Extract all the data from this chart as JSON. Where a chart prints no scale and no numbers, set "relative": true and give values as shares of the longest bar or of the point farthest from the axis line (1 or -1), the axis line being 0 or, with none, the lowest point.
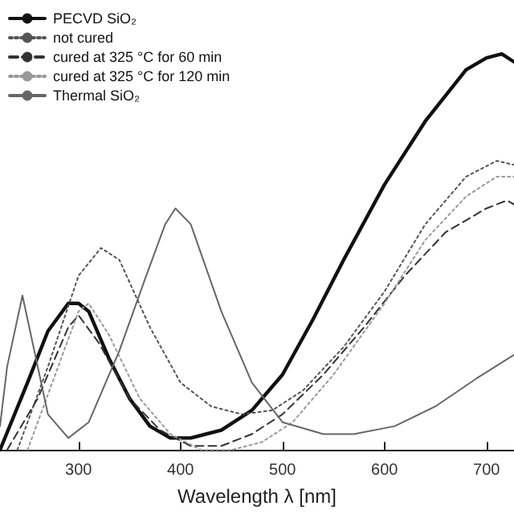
{
  "chart_data": {
    "type": "line",
    "relative": true,
    "xlabel": "Wavelength λ [nm]",
    "xlim": [
      223,
      727
    ],
    "xticks": [
      300,
      400,
      500,
      600,
      700
    ],
    "grid": false,
    "legend": "top left",
    "marker": "none",
    "series": [
      {
        "name": "PECVD SiO₂",
        "color": "#111111",
        "line_style": "solid",
        "x": [
          223,
          250,
          270,
          290,
          300,
          310,
          330,
          350,
          370,
          390,
          410,
          440,
          470,
          500,
          530,
          560,
          600,
          640,
          680,
          700,
          715,
          727
        ],
        "values": [
          0,
          0.17,
          0.3,
          0.37,
          0.37,
          0.35,
          0.23,
          0.13,
          0.06,
          0.03,
          0.03,
          0.05,
          0.1,
          0.19,
          0.33,
          0.48,
          0.67,
          0.83,
          0.96,
          0.99,
          1,
          0.98
        ]
      },
      {
        "name": "not cured",
        "color": "#555555",
        "line_style": "dotted",
        "x": [
          240,
          270,
          300,
          322,
          340,
          370,
          400,
          430,
          460,
          490,
          520,
          560,
          600,
          640,
          680,
          710,
          727
        ],
        "values": [
          0,
          0.21,
          0.44,
          0.51,
          0.48,
          0.31,
          0.17,
          0.11,
          0.09,
          0.1,
          0.15,
          0.26,
          0.4,
          0.57,
          0.69,
          0.73,
          0.72
        ]
      },
      {
        "name": "cured at 325 °C for 60 min",
        "color": "#333333",
        "line_style": "dashed",
        "x": [
          230,
          260,
          290,
          300,
          320,
          350,
          380,
          410,
          440,
          470,
          500,
          540,
          580,
          620,
          660,
          700,
          720,
          727
        ],
        "values": [
          0,
          0.13,
          0.31,
          0.34,
          0.27,
          0.13,
          0.05,
          0.01,
          0.01,
          0.04,
          0.09,
          0.19,
          0.31,
          0.44,
          0.55,
          0.61,
          0.63,
          0.62
        ]
      },
      {
        "name": "cured at 325 °C for 120 min",
        "color": "#999999",
        "line_style": "dotted",
        "x": [
          250,
          280,
          300,
          310,
          330,
          360,
          390,
          420,
          450,
          480,
          510,
          550,
          600,
          640,
          680,
          710,
          727
        ],
        "values": [
          0,
          0.21,
          0.35,
          0.37,
          0.29,
          0.13,
          0.04,
          0,
          0,
          0.02,
          0.07,
          0.19,
          0.37,
          0.53,
          0.64,
          0.69,
          0.69
        ]
      },
      {
        "name": "Thermal SiO₂",
        "color": "#666666",
        "line_style": "solid",
        "x": [
          223,
          230,
          245,
          255,
          270,
          290,
          310,
          340,
          365,
          385,
          395,
          410,
          440,
          470,
          500,
          540,
          570,
          610,
          650,
          690,
          727
        ],
        "values": [
          0.06,
          0.21,
          0.39,
          0.27,
          0.09,
          0.03,
          0.07,
          0.25,
          0.43,
          0.57,
          0.61,
          0.57,
          0.35,
          0.17,
          0.07,
          0.04,
          0.04,
          0.06,
          0.11,
          0.18,
          0.24
        ]
      }
    ]
  }
}
